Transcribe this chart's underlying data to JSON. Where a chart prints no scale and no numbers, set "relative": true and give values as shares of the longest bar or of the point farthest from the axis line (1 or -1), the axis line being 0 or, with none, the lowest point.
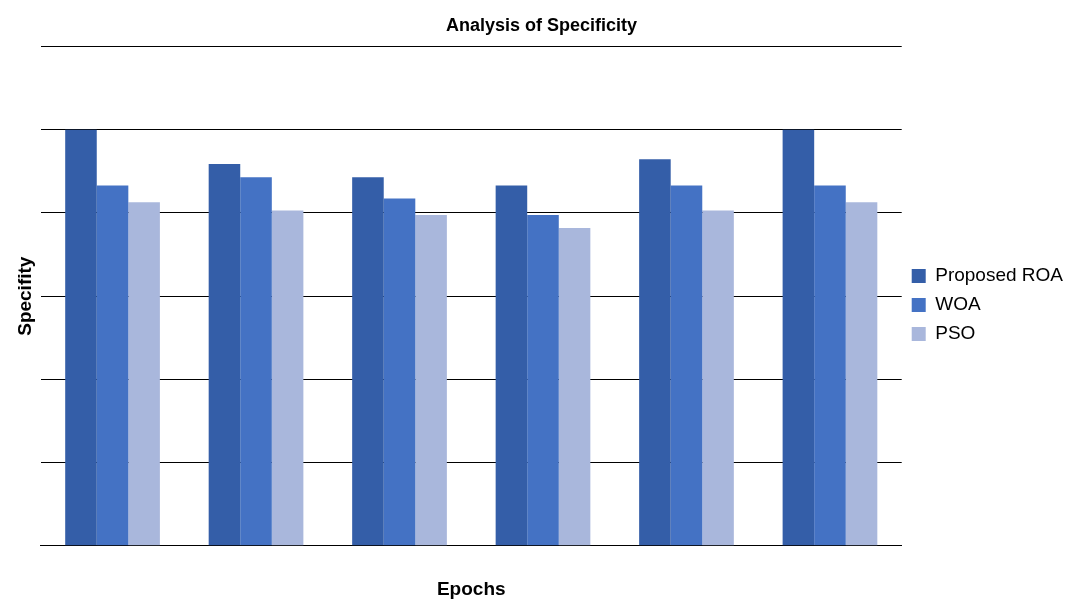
{
  "chart_data": {
    "type": "bar",
    "title": "Analysis of Specificity",
    "xlabel": "Epochs",
    "ylabel": "Specifity",
    "relative": true,
    "grid": "y",
    "legend": "right",
    "categories": [
      null,
      null,
      null,
      null,
      null,
      null
    ],
    "series": [
      {
        "name": "Proposed ROA",
        "color": "#345ea8",
        "values": [
          1,
          0.918,
          0.886,
          0.866,
          0.929,
          1
        ]
      },
      {
        "name": "WOA",
        "color": "#4472c4",
        "values": [
          0.866,
          0.886,
          0.835,
          0.795,
          0.866,
          0.866
        ]
      },
      {
        "name": "PSO",
        "color": "#a9b7dc",
        "values": [
          0.826,
          0.806,
          0.795,
          0.764,
          0.806,
          0.826
        ]
      }
    ]
  }
}
